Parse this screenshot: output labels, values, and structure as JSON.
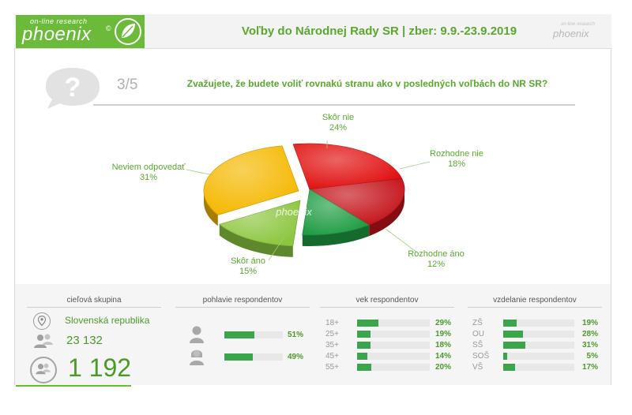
{
  "header": {
    "logo_tagline": "on-line research",
    "logo_word": "phoenix",
    "title": "Voľby do Národnej Rady SR | zber: 9.9.-23.9.2019",
    "logo_small_word": "phoenix",
    "logo_small_tagline": "on-line research"
  },
  "question": {
    "number": "3/5",
    "text": "Zvažujete, že budete voliť rovnakú stranu ako v posledných voľbách do NR SR?"
  },
  "chart_data": {
    "type": "pie",
    "title": "Zvažujete, že budete voliť rovnakú stranu ako v posledných voľbách do NR SR?",
    "watermark": "phoenix",
    "slices": [
      {
        "label": "Skôr nie",
        "value": 24,
        "value_label": "24%",
        "color": "#e10f0f"
      },
      {
        "label": "Rozhodne nie",
        "value": 18,
        "value_label": "18%",
        "color": "#c4131a"
      },
      {
        "label": "Rozhodne áno",
        "value": 12,
        "value_label": "12%",
        "color": "#1f9d43"
      },
      {
        "label": "Skôr áno",
        "value": 15,
        "value_label": "15%",
        "color": "#8cc63f"
      },
      {
        "label": "Neviem odpovedať",
        "value": 31,
        "value_label": "31%",
        "color": "#f5b800"
      }
    ]
  },
  "target_group": {
    "title": "cieľová skupina",
    "region": "Slovenská republika",
    "population": "23 132",
    "respondents": "1 192"
  },
  "gender": {
    "title": "pohlavie respondentov",
    "rows": [
      {
        "icon": "male-icon",
        "value": 51,
        "pct": "51%"
      },
      {
        "icon": "female-icon",
        "value": 49,
        "pct": "49%"
      }
    ]
  },
  "age": {
    "title": "vek respondentov",
    "rows": [
      {
        "label": "18+",
        "value": 29,
        "pct": "29%"
      },
      {
        "label": "25+",
        "value": 19,
        "pct": "19%"
      },
      {
        "label": "35+",
        "value": 18,
        "pct": "18%"
      },
      {
        "label": "45+",
        "value": 14,
        "pct": "14%"
      },
      {
        "label": "55+",
        "value": 20,
        "pct": "20%"
      }
    ]
  },
  "education": {
    "title": "vzdelanie respondentov",
    "rows": [
      {
        "label": "ZŠ",
        "value": 19,
        "pct": "19%"
      },
      {
        "label": "OU",
        "value": 28,
        "pct": "28%"
      },
      {
        "label": "SŠ",
        "value": 31,
        "pct": "31%"
      },
      {
        "label": "SOŠ",
        "value": 5,
        "pct": "5%"
      },
      {
        "label": "VŠ",
        "value": 17,
        "pct": "17%"
      }
    ]
  },
  "colors": {
    "accent": "#6cba3a",
    "bar": "#3aa54a"
  }
}
